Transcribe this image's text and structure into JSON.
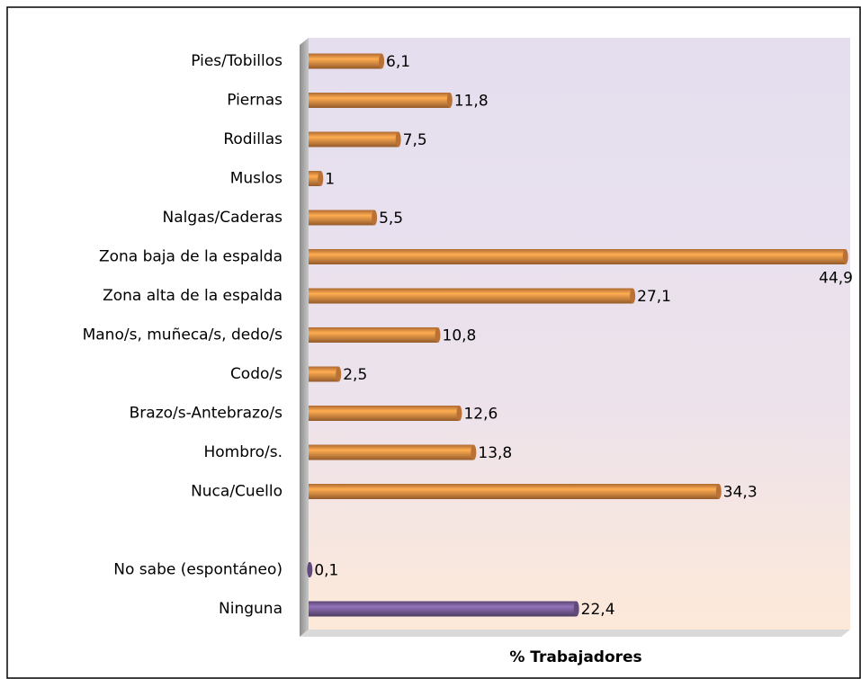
{
  "chart_data": {
    "type": "hbar",
    "x_label": "% Trabajadores",
    "categories": [
      "Pies/Tobillos",
      "Piernas",
      "Rodillas",
      "Muslos",
      "Nalgas/Caderas",
      "Zona baja de la espalda",
      "Zona alta de la espalda",
      "Mano/s, muñeca/s, dedo/s",
      "Codo/s",
      "Brazo/s-Antebrazo/s",
      "Hombro/s.",
      "Nuca/Cuello",
      null,
      "No sabe (espontáneo)",
      "Ninguna"
    ],
    "values": [
      6.1,
      11.8,
      7.5,
      1,
      5.5,
      44.9,
      27.1,
      10.8,
      2.5,
      12.6,
      13.8,
      34.3,
      null,
      0.1,
      22.4
    ],
    "value_labels": [
      "6,1",
      "11,8",
      "7,5",
      "1",
      "5,5",
      "44,9",
      "27,1",
      "10,8",
      "2,5",
      "12,6",
      "13,8",
      "34,3",
      null,
      "0,1",
      "22,4"
    ],
    "colors": [
      "#f79646",
      "#f79646",
      "#f79646",
      "#f79646",
      "#f79646",
      "#f79646",
      "#f79646",
      "#f79646",
      "#f79646",
      "#f79646",
      "#f79646",
      "#f79646",
      null,
      "#8064a2",
      "#8064a2"
    ],
    "xlim": [
      0,
      45
    ]
  }
}
